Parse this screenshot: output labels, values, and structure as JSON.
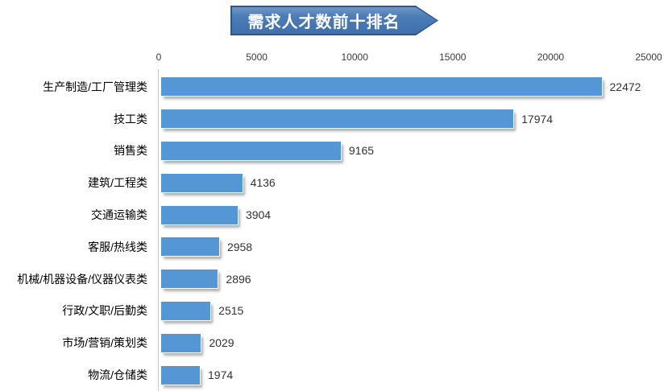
{
  "title": {
    "text": "需求人才数前十排名"
  },
  "colors": {
    "bar": "#5596d5",
    "banner_border": "#2d5689",
    "banner_fill": "#4b7cb6",
    "axis_line": "#c9c9c9",
    "text": "#000000"
  },
  "chart_data": {
    "type": "bar",
    "orientation": "horizontal",
    "title": "需求人才数前十排名",
    "categories": [
      "生产制造/工厂管理类",
      "技工类",
      "销售类",
      "建筑/工程类",
      "交通运输类",
      "客服/热线类",
      "机械/机器设备/仪器仪表类",
      "行政/文职/后勤类",
      "市场/营销/策划类",
      "物流/仓储类"
    ],
    "values": [
      22472,
      17974,
      9165,
      4136,
      3904,
      2958,
      2896,
      2515,
      2029,
      1974
    ],
    "xlim": [
      0,
      25000
    ],
    "x_ticks": [
      0,
      5000,
      10000,
      15000,
      20000,
      25000
    ],
    "data_labels": true,
    "grid": false,
    "legend": false
  }
}
